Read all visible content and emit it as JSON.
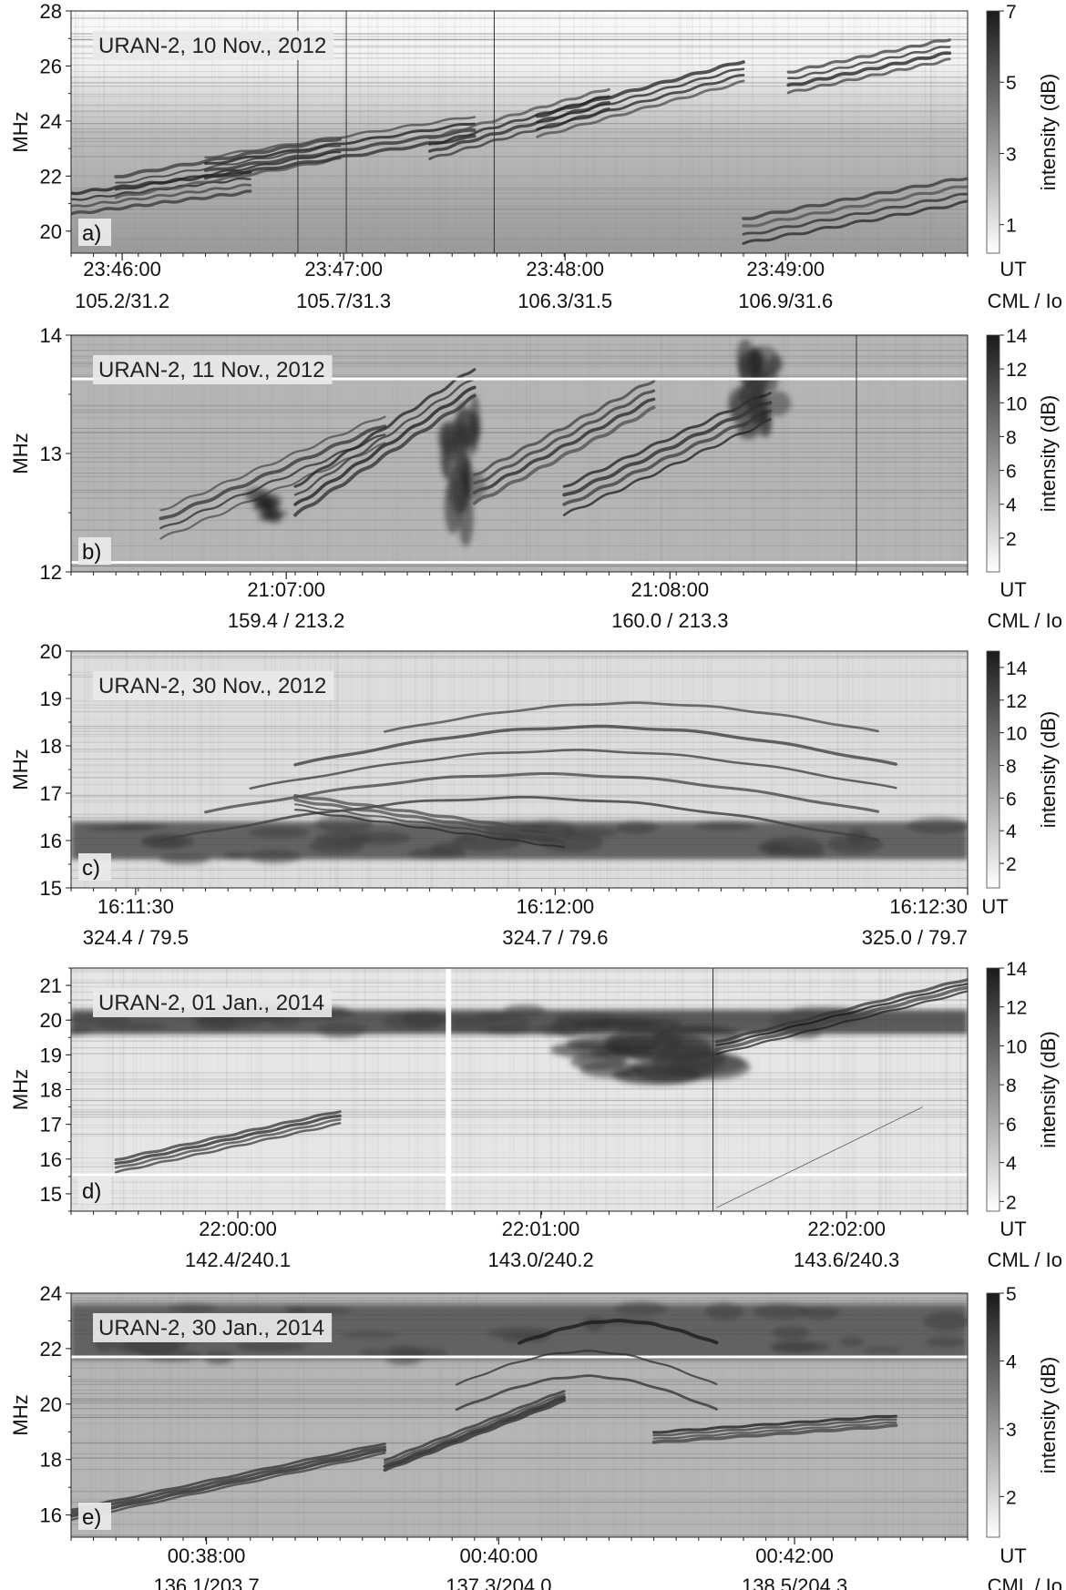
{
  "chart_data": [
    {
      "type": "heatmap",
      "panel_label": "a)",
      "title": "URAN-2,  10 Nov., 2012",
      "ylabel": "MHz",
      "ylim": [
        19.2,
        28
      ],
      "yticks": [
        "20",
        "22",
        "24",
        "26",
        "28"
      ],
      "yvals": [
        20,
        22,
        24,
        26,
        28
      ],
      "xlim": [
        0,
        1
      ],
      "xticks": [
        {
          "pos": 0.057,
          "time": "23:46:00",
          "cml": "105.2/31.2"
        },
        {
          "pos": 0.304,
          "time": "23:47:00",
          "cml": "105.7/31.3"
        },
        {
          "pos": 0.551,
          "time": "23:48:00",
          "cml": "106.3/31.5"
        },
        {
          "pos": 0.797,
          "time": "23:49:00",
          "cml": "106.9/31.6"
        }
      ],
      "x_unit_time": "UT",
      "x_unit_cml": "CML / Io",
      "colorbar_label": "intensity (dB)",
      "colorbar_range": [
        0.2,
        7
      ],
      "colorbar_ticks": [
        "1",
        "3",
        "5",
        "7"
      ],
      "colorbar_vals": [
        1,
        3,
        5,
        7
      ],
      "features": [
        {
          "kind": "stripes",
          "x": [
            0.0,
            0.2
          ],
          "f0": 21.0,
          "f1": 21.8,
          "width": 0.25
        },
        {
          "kind": "stripes",
          "x": [
            0.05,
            0.3
          ],
          "f0": 21.6,
          "f1": 23.0,
          "width": 0.25
        },
        {
          "kind": "stripes",
          "x": [
            0.15,
            0.45
          ],
          "f0": 22.3,
          "f1": 23.8,
          "width": 0.25
        },
        {
          "kind": "stripes",
          "x": [
            0.4,
            0.6
          ],
          "f0": 23.0,
          "f1": 24.8,
          "width": 0.25
        },
        {
          "kind": "stripes",
          "x": [
            0.52,
            0.75
          ],
          "f0": 23.8,
          "f1": 25.8,
          "width": 0.25
        },
        {
          "kind": "stripes",
          "x": [
            0.8,
            0.98
          ],
          "f0": 25.4,
          "f1": 26.6,
          "width": 0.25
        },
        {
          "kind": "stripes",
          "x": [
            0.75,
            1.0
          ],
          "f0": 20.0,
          "f1": 21.5,
          "width": 0.3
        },
        {
          "kind": "vline",
          "x": [
            0.253
          ]
        },
        {
          "kind": "vline",
          "x": [
            0.307
          ]
        },
        {
          "kind": "vline",
          "x": [
            0.472
          ]
        }
      ]
    },
    {
      "type": "heatmap",
      "panel_label": "b)",
      "title": "URAN-2,  11 Nov., 2012",
      "ylabel": "MHz",
      "ylim": [
        12,
        14
      ],
      "yticks": [
        "12",
        "13",
        "14"
      ],
      "yvals": [
        12,
        13,
        14
      ],
      "xlim": [
        0,
        1
      ],
      "xticks": [
        {
          "pos": 0.24,
          "time": "21:07:00",
          "cml": "159.4 / 213.2"
        },
        {
          "pos": 0.668,
          "time": "21:08:00",
          "cml": "160.0 / 213.3"
        }
      ],
      "x_unit_time": "UT",
      "x_unit_cml": "CML / Io",
      "colorbar_label": "intensity (dB)",
      "colorbar_range": [
        0,
        14
      ],
      "colorbar_ticks": [
        "2",
        "4",
        "6",
        "8",
        "10",
        "12",
        "14"
      ],
      "colorbar_vals": [
        2,
        4,
        6,
        8,
        10,
        12,
        14
      ],
      "features": [
        {
          "kind": "stripes",
          "x": [
            0.1,
            0.35
          ],
          "f0": 12.4,
          "f1": 13.2,
          "width": 0.08
        },
        {
          "kind": "stripes",
          "x": [
            0.25,
            0.45
          ],
          "f0": 12.6,
          "f1": 13.6,
          "width": 0.08
        },
        {
          "kind": "stripes",
          "x": [
            0.45,
            0.65
          ],
          "f0": 12.7,
          "f1": 13.5,
          "width": 0.08
        },
        {
          "kind": "stripes",
          "x": [
            0.55,
            0.78
          ],
          "f0": 12.6,
          "f1": 13.4,
          "width": 0.08
        },
        {
          "kind": "blob",
          "x": [
            0.74,
            0.8
          ],
          "f0": 13.1,
          "f1": 13.9,
          "width": 0.1
        },
        {
          "kind": "blob",
          "x": [
            0.41,
            0.46
          ],
          "f0": 12.3,
          "f1": 13.4,
          "width": 0.1
        },
        {
          "kind": "blob",
          "x": [
            0.2,
            0.24
          ],
          "f0": 12.4,
          "f1": 12.7,
          "width": 0.1
        },
        {
          "kind": "wline",
          "x": [
            0.0,
            1.0
          ],
          "f0": 13.63,
          "f1": 13.63
        },
        {
          "kind": "wline",
          "x": [
            0.0,
            1.0
          ],
          "f0": 12.08,
          "f1": 12.08
        },
        {
          "kind": "vline",
          "x": [
            0.876
          ]
        }
      ]
    },
    {
      "type": "heatmap",
      "panel_label": "c)",
      "title": "URAN-2, 30 Nov., 2012",
      "ylabel": "MHz",
      "ylim": [
        15,
        20
      ],
      "yticks": [
        "15",
        "16",
        "17",
        "18",
        "19",
        "20"
      ],
      "yvals": [
        15,
        16,
        17,
        18,
        19,
        20
      ],
      "xlim": [
        0,
        1
      ],
      "xticks": [
        {
          "pos": 0.072,
          "time": "16:11:30",
          "cml": "324.4 / 79.5"
        },
        {
          "pos": 0.54,
          "time": "16:12:00",
          "cml": "324.7 / 79.6"
        },
        {
          "pos": 1.0,
          "time": "16:12:30",
          "cml": "325.0 / 79.7"
        }
      ],
      "x_unit_time": "UT",
      "x_unit_cml": "",
      "colorbar_label": "intensity (dB)",
      "colorbar_range": [
        0.5,
        15
      ],
      "colorbar_ticks": [
        "2",
        "4",
        "6",
        "8",
        "10",
        "12",
        "14"
      ],
      "colorbar_vals": [
        2,
        4,
        6,
        8,
        10,
        12,
        14
      ],
      "features": [
        {
          "kind": "arc",
          "x": [
            0.1,
            0.9
          ],
          "f0": 16.0,
          "f1": 16.9,
          "width": 0.12
        },
        {
          "kind": "arc",
          "x": [
            0.15,
            0.9
          ],
          "f0": 16.6,
          "f1": 17.4,
          "width": 0.1
        },
        {
          "kind": "arc",
          "x": [
            0.2,
            0.92
          ],
          "f0": 17.1,
          "f1": 17.9,
          "width": 0.1
        },
        {
          "kind": "arc",
          "x": [
            0.25,
            0.92
          ],
          "f0": 17.6,
          "f1": 18.4,
          "width": 0.1
        },
        {
          "kind": "arc",
          "x": [
            0.35,
            0.9
          ],
          "f0": 18.3,
          "f1": 18.9,
          "width": 0.08
        },
        {
          "kind": "band",
          "x": [
            0.0,
            1.0
          ],
          "f0": 15.6,
          "f1": 16.4,
          "width": 0.4
        },
        {
          "kind": "stripes",
          "x": [
            0.25,
            0.55
          ],
          "f0": 16.8,
          "f1": 16.0,
          "width": 0.1
        }
      ]
    },
    {
      "type": "heatmap",
      "panel_label": "d)",
      "title": "URAN-2,  01 Jan., 2014",
      "ylabel": "MHz",
      "ylim": [
        14.5,
        21.5
      ],
      "yticks": [
        "15",
        "16",
        "17",
        "18",
        "19",
        "20",
        "21"
      ],
      "yvals": [
        15,
        16,
        17,
        18,
        19,
        20,
        21
      ],
      "xlim": [
        0,
        1
      ],
      "xticks": [
        {
          "pos": 0.186,
          "time": "22:00:00",
          "cml": "142.4/240.1"
        },
        {
          "pos": 0.524,
          "time": "22:01:00",
          "cml": "143.0/240.2"
        },
        {
          "pos": 0.865,
          "time": "22:02:00",
          "cml": "143.6/240.3"
        }
      ],
      "x_unit_time": "UT",
      "x_unit_cml": "CML / Io",
      "colorbar_label": "intensity (dB)",
      "colorbar_range": [
        1.5,
        14
      ],
      "colorbar_ticks": [
        "2",
        "4",
        "6",
        "8",
        "10",
        "12",
        "14"
      ],
      "colorbar_vals": [
        2,
        4,
        6,
        8,
        10,
        12,
        14
      ],
      "features": [
        {
          "kind": "band",
          "x": [
            0.0,
            1.0
          ],
          "f0": 19.6,
          "f1": 20.3,
          "width": 0.5
        },
        {
          "kind": "blob",
          "x": [
            0.55,
            0.75
          ],
          "f0": 18.2,
          "f1": 20.2,
          "width": 0.6
        },
        {
          "kind": "stripes",
          "x": [
            0.05,
            0.3
          ],
          "f0": 15.8,
          "f1": 17.2,
          "width": 0.12
        },
        {
          "kind": "stripes",
          "x": [
            0.72,
            1.0
          ],
          "f0": 19.2,
          "f1": 21.0,
          "width": 0.12
        },
        {
          "kind": "wline",
          "x": [
            0.0,
            1.0
          ],
          "f0": 15.55,
          "f1": 15.55
        },
        {
          "kind": "wgap",
          "x": [
            0.418,
            0.424
          ]
        },
        {
          "kind": "vline",
          "x": [
            0.716
          ]
        },
        {
          "kind": "diag",
          "x": [
            0.72,
            0.95
          ],
          "f0": 14.6,
          "f1": 17.5
        }
      ]
    },
    {
      "type": "heatmap",
      "panel_label": "e)",
      "title": "URAN-2,  30 Jan., 2014",
      "ylabel": "MHz",
      "ylim": [
        15.2,
        24
      ],
      "yticks": [
        "16",
        "18",
        "20",
        "22",
        "24"
      ],
      "yvals": [
        16,
        18,
        20,
        22,
        24
      ],
      "xlim": [
        0,
        1
      ],
      "xticks": [
        {
          "pos": 0.151,
          "time": "00:38:00",
          "cml": "136.1/203.7"
        },
        {
          "pos": 0.477,
          "time": "00:40:00",
          "cml": "137.3/204.0"
        },
        {
          "pos": 0.807,
          "time": "00:42:00",
          "cml": "138.5/204.3"
        }
      ],
      "x_unit_time": "UT",
      "x_unit_cml": "CML / Io",
      "colorbar_label": "intensity (dB)",
      "colorbar_range": [
        1.4,
        5
      ],
      "colorbar_ticks": [
        "2",
        "3",
        "4",
        "5"
      ],
      "colorbar_vals": [
        2,
        3,
        4,
        5
      ],
      "features": [
        {
          "kind": "band",
          "x": [
            0.0,
            1.0
          ],
          "f0": 21.6,
          "f1": 23.6,
          "width": 0.35
        },
        {
          "kind": "wline",
          "x": [
            0.0,
            1.0
          ],
          "f0": 21.7,
          "f1": 21.7
        },
        {
          "kind": "arc",
          "x": [
            0.43,
            0.72
          ],
          "f0": 19.8,
          "f1": 21.0,
          "width": 0.15
        },
        {
          "kind": "arc",
          "x": [
            0.43,
            0.72
          ],
          "f0": 20.7,
          "f1": 21.9,
          "width": 0.15
        },
        {
          "kind": "arc",
          "x": [
            0.5,
            0.72
          ],
          "f0": 22.2,
          "f1": 23.0,
          "width": 0.12
        },
        {
          "kind": "stripes",
          "x": [
            0.35,
            0.55
          ],
          "f0": 17.8,
          "f1": 20.3,
          "width": 0.12
        },
        {
          "kind": "stripes",
          "x": [
            0.0,
            0.35
          ],
          "f0": 16.0,
          "f1": 18.4,
          "width": 0.12
        },
        {
          "kind": "stripes",
          "x": [
            0.65,
            0.92
          ],
          "f0": 18.8,
          "f1": 19.4,
          "width": 0.12
        }
      ]
    }
  ]
}
